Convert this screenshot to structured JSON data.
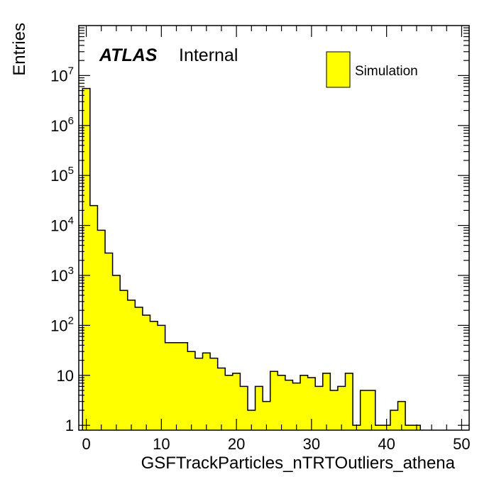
{
  "chart_data": {
    "type": "bar",
    "title": "",
    "xlabel": "GSFTrackParticles_nTRTOutliers_athena",
    "ylabel": "Entries",
    "x_scale": "linear",
    "y_scale": "log",
    "xlim": [
      -1,
      51
    ],
    "ylim": [
      0.8,
      100000000
    ],
    "bin_width": 1,
    "bin_low_edges": [
      -0.5,
      0.5,
      1.5,
      2.5,
      3.5,
      4.5,
      5.5,
      6.5,
      7.5,
      8.5,
      9.5,
      10.5,
      11.5,
      12.5,
      13.5,
      14.5,
      15.5,
      16.5,
      17.5,
      18.5,
      19.5,
      20.5,
      21.5,
      22.5,
      23.5,
      24.5,
      25.5,
      26.5,
      27.5,
      28.5,
      29.5,
      30.5,
      31.5,
      32.5,
      33.5,
      34.5,
      35.5,
      36.5,
      37.5,
      38.5,
      39.5,
      40.5,
      41.5,
      42.5,
      43.5
    ],
    "values": [
      5500000,
      25000,
      8000,
      2800,
      1000,
      500,
      320,
      230,
      160,
      120,
      100,
      45,
      45,
      45,
      30,
      22,
      28,
      22,
      14,
      10,
      11,
      6,
      2,
      6,
      3,
      12,
      10,
      8,
      7,
      10,
      9,
      6,
      11,
      5,
      6,
      11,
      1,
      5,
      5,
      1,
      1,
      2,
      3,
      1,
      1
    ],
    "fill_color": "#ffff00",
    "line_color": "#000000",
    "grid": false,
    "x_ticks": [
      "0",
      "10",
      "20",
      "30",
      "40",
      "50"
    ],
    "y_tick_labels": [
      {
        "base": "1",
        "exp": ""
      },
      {
        "base": "10",
        "exp": ""
      },
      {
        "base": "10",
        "exp": "2"
      },
      {
        "base": "10",
        "exp": "3"
      },
      {
        "base": "10",
        "exp": "4"
      },
      {
        "base": "10",
        "exp": "5"
      },
      {
        "base": "10",
        "exp": "6"
      },
      {
        "base": "10",
        "exp": "7"
      }
    ],
    "annotations": {
      "atlas_label": "ATLAS",
      "atlas_sublabel": "Internal"
    },
    "legend": {
      "position": "top-right",
      "entries": [
        {
          "name": "Simulation",
          "color": "#ffff00"
        }
      ]
    }
  }
}
